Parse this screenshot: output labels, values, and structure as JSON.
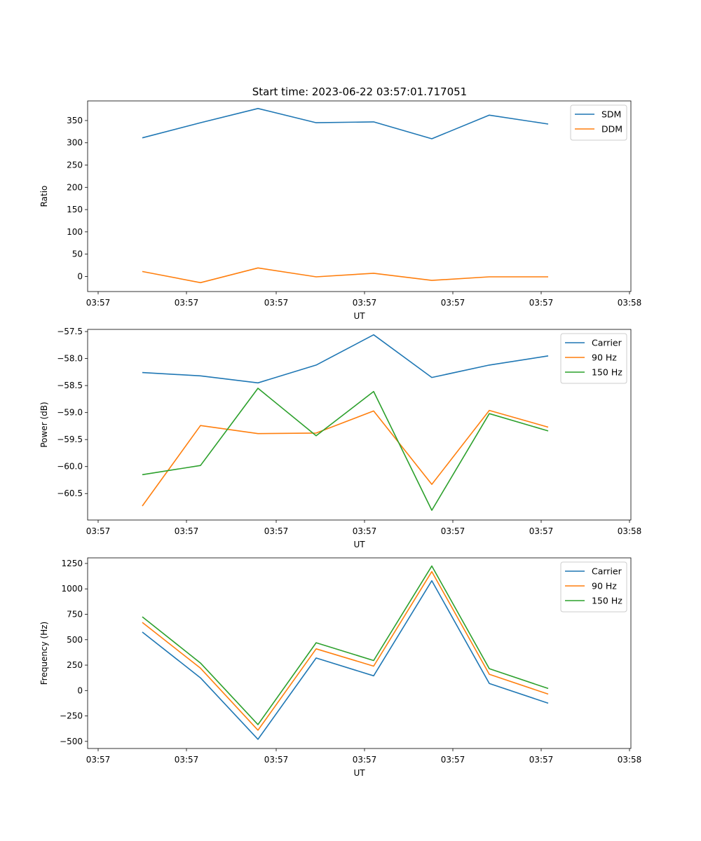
{
  "figure_title": "Start time: 2023-06-22 03:57:01.717051",
  "chart_data": [
    {
      "type": "line",
      "title": "Start time: 2023-06-22 03:57:01.717051",
      "xlabel": "UT",
      "ylabel": "Ratio",
      "x_tick_labels": [
        "03:57",
        "03:57",
        "03:57",
        "03:57",
        "03:57",
        "03:57",
        "03:58"
      ],
      "y_ticks": [
        0,
        50,
        100,
        150,
        200,
        250,
        300,
        350
      ],
      "ylim": [
        -34,
        394
      ],
      "legend_position": "top-right",
      "series": [
        {
          "name": "SDM",
          "color": "#1f77b4",
          "values": [
            311,
            345,
            377,
            345,
            347,
            309,
            362,
            342
          ]
        },
        {
          "name": "DDM",
          "color": "#ff7f0e",
          "values": [
            11,
            -14,
            19,
            -1,
            7,
            -9,
            -1,
            -1
          ]
        }
      ]
    },
    {
      "type": "line",
      "xlabel": "UT",
      "ylabel": "Power (dB)",
      "x_tick_labels": [
        "03:57",
        "03:57",
        "03:57",
        "03:57",
        "03:57",
        "03:57",
        "03:58"
      ],
      "y_ticks": [
        -60.5,
        -60.0,
        -59.5,
        -59.0,
        -58.5,
        -58.0,
        -57.5
      ],
      "y_tick_labels": [
        "−60.5",
        "−60.0",
        "−59.5",
        "−59.0",
        "−58.5",
        "−58.0",
        "−57.5"
      ],
      "ylim": [
        -60.99,
        -57.46
      ],
      "legend_position": "top-right",
      "series": [
        {
          "name": "Carrier",
          "color": "#1f77b4",
          "values": [
            -58.26,
            -58.32,
            -58.45,
            -58.12,
            -57.56,
            -58.35,
            -58.12,
            -57.95
          ]
        },
        {
          "name": "90 Hz",
          "color": "#ff7f0e",
          "values": [
            -60.73,
            -59.24,
            -59.39,
            -59.38,
            -58.97,
            -60.33,
            -58.96,
            -59.27
          ]
        },
        {
          "name": "150 Hz",
          "color": "#2ca02c",
          "values": [
            -60.15,
            -59.98,
            -58.55,
            -59.43,
            -58.61,
            -60.81,
            -59.02,
            -59.34
          ]
        }
      ]
    },
    {
      "type": "line",
      "xlabel": "UT",
      "ylabel": "Frequency (Hz)",
      "x_tick_labels": [
        "03:57",
        "03:57",
        "03:57",
        "03:57",
        "03:57",
        "03:57",
        "03:58"
      ],
      "y_ticks": [
        -500,
        -250,
        0,
        250,
        500,
        750,
        1000,
        1250
      ],
      "y_tick_labels": [
        "−500",
        "−250",
        "0",
        "250",
        "500",
        "750",
        "1000",
        "1250"
      ],
      "ylim": [
        -570,
        1305
      ],
      "legend_position": "top-right",
      "series": [
        {
          "name": "Carrier",
          "color": "#1f77b4",
          "values": [
            575,
            125,
            -480,
            320,
            145,
            1080,
            70,
            -125
          ]
        },
        {
          "name": "90 Hz",
          "color": "#ff7f0e",
          "values": [
            670,
            220,
            -390,
            410,
            240,
            1170,
            160,
            -35
          ]
        },
        {
          "name": "150 Hz",
          "color": "#2ca02c",
          "values": [
            725,
            270,
            -335,
            470,
            295,
            1225,
            215,
            20
          ]
        }
      ]
    }
  ]
}
